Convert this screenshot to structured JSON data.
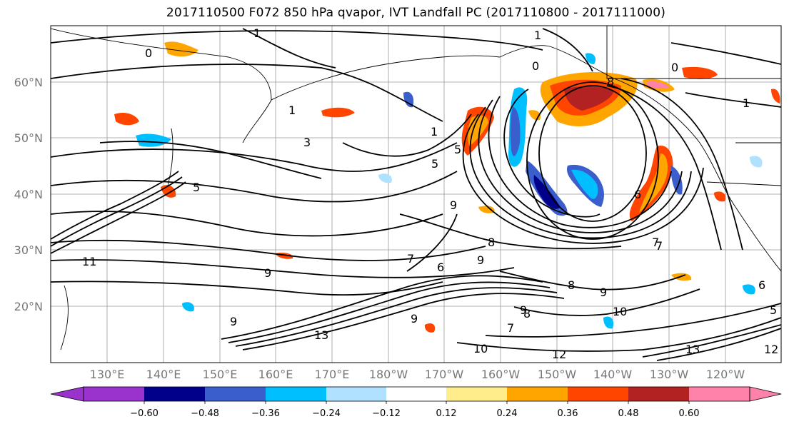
{
  "title": "2017110500 F072 850 hPa qvapor, IVT Landfall PC (2017110800 - 2017111000)",
  "lat_labels": [
    "60°N",
    "50°N",
    "40°N",
    "30°N",
    "20°N"
  ],
  "lon_labels": [
    "130°E",
    "140°E",
    "150°E",
    "160°E",
    "170°E",
    "180°W",
    "170°W",
    "160°W",
    "150°W",
    "140°W",
    "130°W",
    "120°W"
  ],
  "colorbar": {
    "colors": [
      "#9a32cd",
      "#00008b",
      "#3a5fcd",
      "#00bfff",
      "#b0e2ff",
      "#ffffff",
      "#ffec8b",
      "#ffa500",
      "#ff4500",
      "#b22222",
      "#ff82ab"
    ],
    "tick_labels": [
      "−0.60",
      "−0.48",
      "−0.36",
      "−0.24",
      "−0.12",
      "0.12",
      "0.24",
      "0.36",
      "0.48",
      "0.60"
    ]
  },
  "contour_labels": [
    "1",
    "0",
    "1",
    "3",
    "5",
    "5",
    "1",
    "5",
    "0",
    "8",
    "1",
    "0",
    "1",
    "9",
    "6",
    "9",
    "8",
    "11",
    "9",
    "7",
    "6",
    "9",
    "8",
    "7",
    "9",
    "9",
    "13",
    "9",
    "7",
    "10",
    "12",
    "10",
    "13",
    "12",
    "8",
    "5",
    "6",
    "7"
  ]
}
